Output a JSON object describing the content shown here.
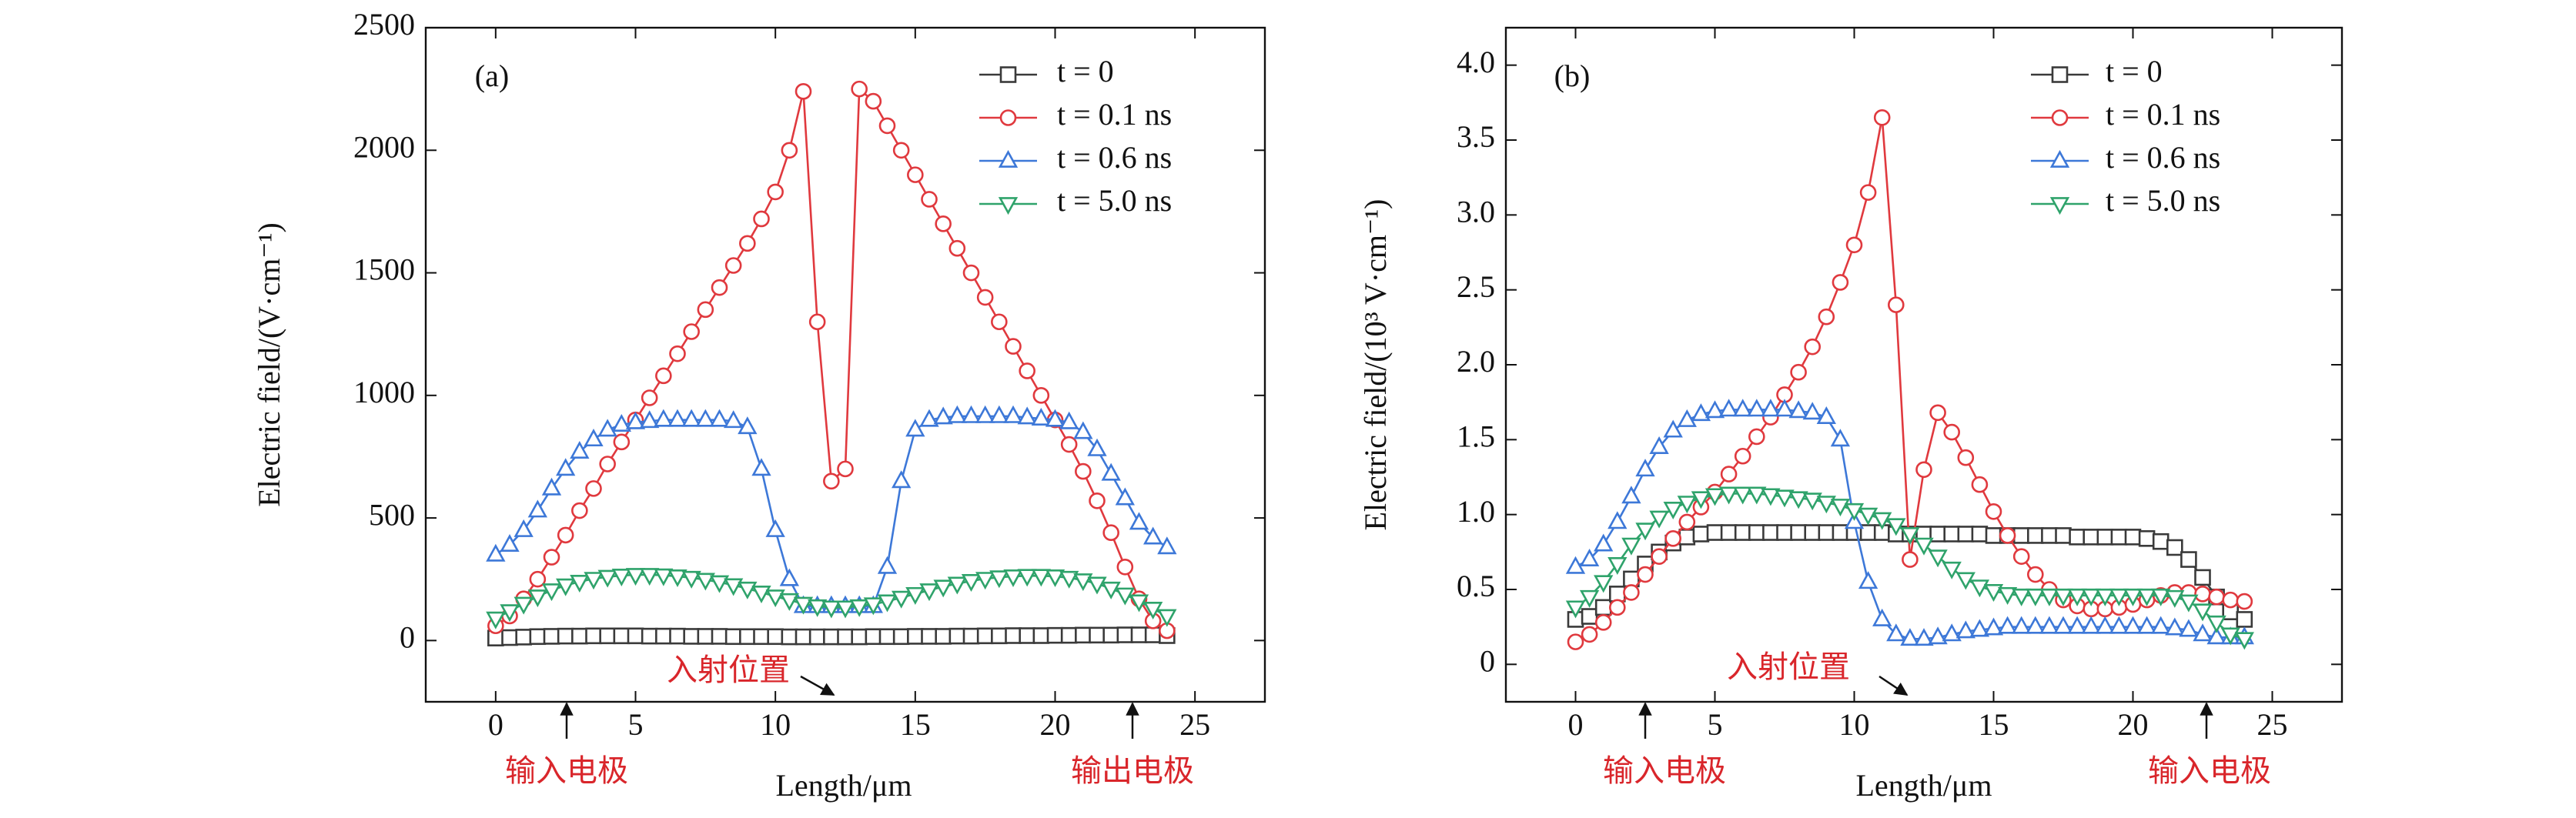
{
  "chart_data": [
    {
      "type": "line",
      "panel_label": "(a)",
      "x_label": "Length/μm",
      "y_label": "Electric field/(V·cm⁻¹)",
      "annotations": [
        "入射位置",
        "输入电极",
        "输出电极"
      ],
      "xlim": [
        -2.5,
        27.5
      ],
      "xticks": [
        0,
        5,
        10,
        15,
        20,
        25
      ],
      "ylim": [
        -250,
        2500
      ],
      "yticks": [
        0,
        500,
        1000,
        1500,
        2000,
        2500
      ],
      "legend": "upper right",
      "x": [
        0,
        0.5,
        1,
        1.5,
        2,
        2.5,
        3,
        3.5,
        4,
        4.5,
        5,
        5.5,
        6,
        6.5,
        7,
        7.5,
        8,
        8.5,
        9,
        9.5,
        10,
        10.5,
        11,
        11.5,
        12,
        12.5,
        13,
        13.5,
        14,
        14.5,
        15,
        15.5,
        16,
        16.5,
        17,
        17.5,
        18,
        18.5,
        19,
        19.5,
        20,
        20.5,
        21,
        21.5,
        22,
        22.5,
        23,
        23.5,
        24
      ],
      "series": [
        {
          "name": "t = 0",
          "color": "#3a3a3a",
          "marker": "square",
          "values": [
            10,
            12,
            14,
            16,
            17,
            18,
            18,
            19,
            19,
            19,
            19,
            18,
            18,
            18,
            17,
            17,
            17,
            16,
            16,
            16,
            16,
            15,
            15,
            15,
            15,
            15,
            15,
            16,
            16,
            16,
            17,
            17,
            17,
            18,
            18,
            19,
            19,
            20,
            20,
            20,
            21,
            21,
            22,
            22,
            22,
            23,
            23,
            23,
            20
          ]
        },
        {
          "name": "t = 0.1 ns",
          "color": "#e0393e",
          "marker": "circle",
          "values": [
            60,
            100,
            170,
            250,
            340,
            430,
            530,
            620,
            720,
            810,
            900,
            990,
            1080,
            1170,
            1260,
            1350,
            1440,
            1530,
            1620,
            1720,
            1830,
            2000,
            2240,
            1300,
            650,
            700,
            2250,
            2200,
            2100,
            2000,
            1900,
            1800,
            1700,
            1600,
            1500,
            1400,
            1300,
            1200,
            1100,
            1000,
            900,
            800,
            690,
            570,
            440,
            300,
            170,
            80,
            40
          ]
        },
        {
          "name": "t = 0.6 ns",
          "color": "#3d78d8",
          "marker": "triangle-up",
          "values": [
            350,
            390,
            450,
            530,
            620,
            700,
            770,
            820,
            860,
            880,
            890,
            895,
            900,
            900,
            900,
            900,
            900,
            895,
            870,
            700,
            450,
            250,
            140,
            140,
            140,
            140,
            140,
            140,
            300,
            650,
            860,
            900,
            910,
            915,
            915,
            915,
            915,
            915,
            910,
            905,
            900,
            890,
            850,
            780,
            680,
            580,
            480,
            420,
            380
          ]
        },
        {
          "name": "t = 5.0 ns",
          "color": "#2fa36b",
          "marker": "triangle-down",
          "values": [
            90,
            120,
            150,
            180,
            205,
            225,
            240,
            252,
            260,
            265,
            268,
            268,
            266,
            262,
            256,
            248,
            238,
            226,
            212,
            196,
            180,
            165,
            150,
            140,
            135,
            135,
            140,
            148,
            160,
            175,
            190,
            205,
            220,
            232,
            243,
            252,
            258,
            262,
            264,
            264,
            262,
            256,
            246,
            232,
            212,
            188,
            160,
            130,
            100
          ]
        }
      ]
    },
    {
      "type": "line",
      "panel_label": "(b)",
      "x_label": "Length/μm",
      "y_label": "Electric field/(10³ V·cm⁻¹)",
      "annotations": [
        "入射位置",
        "输入电极",
        "输入电极"
      ],
      "xlim": [
        -2.5,
        27.5
      ],
      "xticks": [
        0,
        5,
        10,
        15,
        20,
        25
      ],
      "ylim": [
        -0.25,
        4.25
      ],
      "yticks": [
        0,
        0.5,
        {
          "value": 1,
          "label": "1.0"
        },
        1.5,
        {
          "value": 2,
          "label": "2.0"
        },
        2.5,
        {
          "value": 3,
          "label": "3.0"
        },
        3.5,
        {
          "value": 4,
          "label": "4.0"
        }
      ],
      "legend": "upper right",
      "x": [
        0,
        0.5,
        1,
        1.5,
        2,
        2.5,
        3,
        3.5,
        4,
        4.5,
        5,
        5.5,
        6,
        6.5,
        7,
        7.5,
        8,
        8.5,
        9,
        9.5,
        10,
        10.5,
        11,
        11.5,
        12,
        12.5,
        13,
        13.5,
        14,
        14.5,
        15,
        15.5,
        16,
        16.5,
        17,
        17.5,
        18,
        18.5,
        19,
        19.5,
        20,
        20.5,
        21,
        21.5,
        22,
        22.5,
        23,
        23.5,
        24
      ],
      "series": [
        {
          "name": "t = 0",
          "color": "#3a3a3a",
          "marker": "square",
          "values": [
            0.3,
            0.32,
            0.38,
            0.47,
            0.57,
            0.67,
            0.75,
            0.81,
            0.85,
            0.87,
            0.88,
            0.88,
            0.88,
            0.88,
            0.88,
            0.88,
            0.88,
            0.88,
            0.88,
            0.88,
            0.88,
            0.88,
            0.88,
            0.87,
            0.87,
            0.87,
            0.87,
            0.87,
            0.87,
            0.87,
            0.86,
            0.86,
            0.86,
            0.86,
            0.86,
            0.86,
            0.85,
            0.85,
            0.85,
            0.85,
            0.85,
            0.84,
            0.82,
            0.78,
            0.7,
            0.58,
            0.45,
            0.35,
            0.3
          ]
        },
        {
          "name": "t = 0.1 ns",
          "color": "#e0393e",
          "marker": "circle",
          "values": [
            0.15,
            0.2,
            0.28,
            0.38,
            0.48,
            0.6,
            0.72,
            0.84,
            0.95,
            1.05,
            1.15,
            1.27,
            1.39,
            1.52,
            1.65,
            1.8,
            1.95,
            2.12,
            2.32,
            2.55,
            2.8,
            3.15,
            3.65,
            2.4,
            0.7,
            1.3,
            1.68,
            1.55,
            1.38,
            1.2,
            1.02,
            0.86,
            0.72,
            0.6,
            0.5,
            0.43,
            0.39,
            0.37,
            0.37,
            0.38,
            0.4,
            0.43,
            0.46,
            0.48,
            0.48,
            0.47,
            0.45,
            0.43,
            0.42
          ]
        },
        {
          "name": "t = 0.6 ns",
          "color": "#3d78d8",
          "marker": "triangle-up",
          "values": [
            0.65,
            0.7,
            0.8,
            0.95,
            1.12,
            1.3,
            1.45,
            1.56,
            1.63,
            1.67,
            1.69,
            1.7,
            1.7,
            1.7,
            1.7,
            1.7,
            1.69,
            1.68,
            1.65,
            1.5,
            0.95,
            0.55,
            0.3,
            0.2,
            0.17,
            0.17,
            0.18,
            0.2,
            0.22,
            0.23,
            0.24,
            0.25,
            0.25,
            0.25,
            0.25,
            0.25,
            0.25,
            0.25,
            0.25,
            0.25,
            0.25,
            0.25,
            0.25,
            0.24,
            0.23,
            0.2,
            0.18,
            0.18,
            0.18
          ]
        },
        {
          "name": "t = 5.0 ns",
          "color": "#2fa36b",
          "marker": "triangle-down",
          "values": [
            0.38,
            0.45,
            0.55,
            0.67,
            0.8,
            0.9,
            0.98,
            1.04,
            1.08,
            1.11,
            1.13,
            1.14,
            1.14,
            1.14,
            1.13,
            1.12,
            1.11,
            1.1,
            1.08,
            1.06,
            1.03,
            1.0,
            0.97,
            0.93,
            0.87,
            0.8,
            0.72,
            0.64,
            0.57,
            0.52,
            0.49,
            0.47,
            0.46,
            0.46,
            0.46,
            0.46,
            0.46,
            0.46,
            0.46,
            0.46,
            0.46,
            0.46,
            0.46,
            0.45,
            0.42,
            0.36,
            0.28,
            0.2,
            0.17
          ]
        }
      ]
    }
  ]
}
